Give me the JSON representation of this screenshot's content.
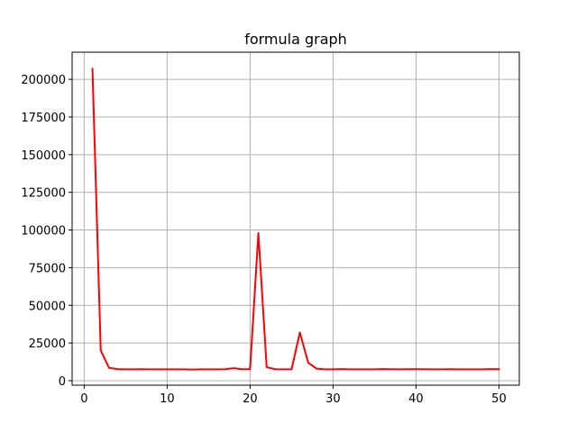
{
  "chart_data": {
    "type": "line",
    "title": "formula graph",
    "xlabel": "",
    "ylabel": "",
    "xlim": [
      -1.45,
      52.45
    ],
    "ylim": [
      -3000,
      218000
    ],
    "x_ticks": [
      0,
      10,
      20,
      30,
      40,
      50
    ],
    "x_tick_labels": [
      "0",
      "10",
      "20",
      "30",
      "40",
      "50"
    ],
    "y_ticks": [
      0,
      25000,
      50000,
      75000,
      100000,
      125000,
      150000,
      175000,
      200000
    ],
    "y_tick_labels": [
      "0",
      "25000",
      "50000",
      "75000",
      "100000",
      "125000",
      "150000",
      "175000",
      "200000"
    ],
    "grid": true,
    "legend": false,
    "series": [
      {
        "color": "#ff0000",
        "x": [
          1,
          2,
          3,
          4,
          5,
          6,
          7,
          8,
          9,
          10,
          11,
          12,
          13,
          14,
          15,
          16,
          17,
          18,
          19,
          20,
          21,
          22,
          23,
          24,
          25,
          26,
          27,
          28,
          29,
          30,
          31,
          32,
          33,
          34,
          35,
          36,
          37,
          38,
          39,
          40,
          41,
          42,
          43,
          44,
          45,
          46,
          47,
          48,
          49,
          50
        ],
        "y": [
          207000,
          20000,
          8500,
          7700,
          7500,
          7500,
          7600,
          7500,
          7500,
          7500,
          7500,
          7500,
          7400,
          7500,
          7500,
          7500,
          7600,
          8300,
          7600,
          7700,
          98000,
          9000,
          7600,
          7500,
          7600,
          32000,
          12000,
          8000,
          7500,
          7500,
          7700,
          7500,
          7500,
          7500,
          7500,
          7700,
          7600,
          7500,
          7600,
          7600,
          7600,
          7500,
          7500,
          7600,
          7500,
          7500,
          7500,
          7500,
          7700,
          7600
        ]
      }
    ]
  }
}
